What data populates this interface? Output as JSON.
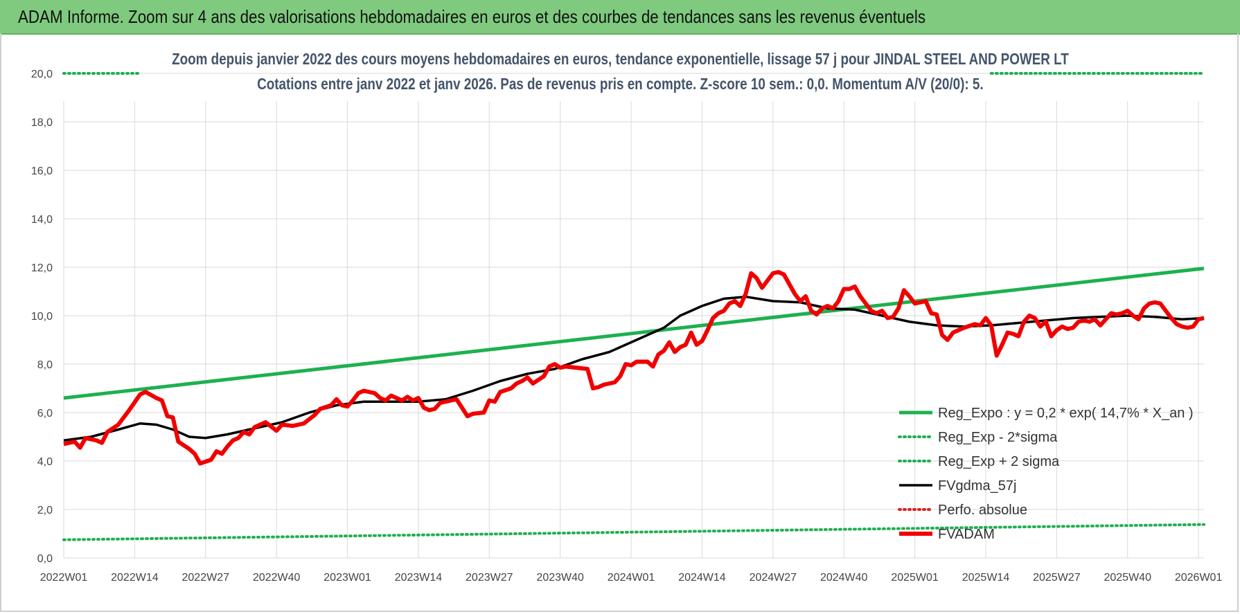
{
  "banner": {
    "title": "ADAM Informe. Zoom sur 4 ans des valorisations hebdomadaires en euros et des courbes de tendances sans les revenus éventuels"
  },
  "chart_data": {
    "type": "line",
    "title_line1": "Zoom depuis janvier 2022 des cours moyens hebdomadaires en euros, tendance exponentielle, lissage 57 j pour JINDAL STEEL AND POWER LT",
    "title_line2": "Cotations entre janv 2022 et janv 2026. Pas de revenus pris en compte. Z-score 10 sem.: 0,0. Momentum A/V (20/0): 5.",
    "xlabel": "",
    "ylabel": "",
    "ylim": [
      0,
      20
    ],
    "yticks": [
      "0,0",
      "2,0",
      "4,0",
      "6,0",
      "8,0",
      "10,0",
      "12,0",
      "14,0",
      "16,0",
      "18,0",
      "20,0"
    ],
    "x_ticks": [
      "2022W01",
      "2022W14",
      "2022W27",
      "2022W40",
      "2023W01",
      "2023W14",
      "2023W27",
      "2023W40",
      "2024W01",
      "2024W14",
      "2024W27",
      "2024W40",
      "2025W01",
      "2025W14",
      "2025W27",
      "2025W40",
      "2026W01"
    ],
    "x_range_weeks": [
      0,
      209
    ],
    "grid": true,
    "legend_position": "bottom-right",
    "series": [
      {
        "name": "Reg_Expo : y = 0,2 * exp( 14,7% *  X_an )",
        "color": "#1eb050",
        "style": "solid",
        "points": [
          [
            0,
            6.6
          ],
          [
            209,
            11.95
          ]
        ]
      },
      {
        "name": "Reg_Exp - 2*sigma",
        "color": "#1eb050",
        "style": "dotted",
        "points": [
          [
            0,
            0.75
          ],
          [
            209,
            1.38
          ]
        ]
      },
      {
        "name": "Reg_Exp + 2 sigma",
        "color": "#1eb050",
        "style": "dotted",
        "points": [
          [
            0,
            20.0
          ],
          [
            14,
            20.0
          ],
          [
            170,
            20.0
          ],
          [
            209,
            20.0
          ]
        ],
        "segments": [
          [
            0,
            14
          ],
          [
            170,
            209
          ]
        ]
      },
      {
        "name": "FVgdma_57j",
        "color": "#000000",
        "style": "solid",
        "points": [
          [
            0,
            4.85
          ],
          [
            5,
            5.0
          ],
          [
            10,
            5.3
          ],
          [
            14,
            5.55
          ],
          [
            17,
            5.5
          ],
          [
            20,
            5.3
          ],
          [
            23,
            5.0
          ],
          [
            26,
            4.95
          ],
          [
            30,
            5.1
          ],
          [
            35,
            5.35
          ],
          [
            40,
            5.6
          ],
          [
            45,
            6.0
          ],
          [
            50,
            6.3
          ],
          [
            55,
            6.45
          ],
          [
            60,
            6.45
          ],
          [
            65,
            6.45
          ],
          [
            70,
            6.55
          ],
          [
            75,
            6.9
          ],
          [
            80,
            7.3
          ],
          [
            85,
            7.6
          ],
          [
            90,
            7.8
          ],
          [
            95,
            8.2
          ],
          [
            100,
            8.5
          ],
          [
            105,
            9.0
          ],
          [
            110,
            9.5
          ],
          [
            113,
            10.0
          ],
          [
            117,
            10.4
          ],
          [
            121,
            10.7
          ],
          [
            125,
            10.78
          ],
          [
            130,
            10.6
          ],
          [
            135,
            10.55
          ],
          [
            140,
            10.3
          ],
          [
            145,
            10.25
          ],
          [
            150,
            10.0
          ],
          [
            155,
            9.75
          ],
          [
            160,
            9.6
          ],
          [
            165,
            9.55
          ],
          [
            170,
            9.6
          ],
          [
            175,
            9.7
          ],
          [
            180,
            9.8
          ],
          [
            185,
            9.9
          ],
          [
            190,
            9.95
          ],
          [
            195,
            10.0
          ],
          [
            200,
            9.95
          ],
          [
            205,
            9.85
          ],
          [
            209,
            9.9
          ]
        ]
      },
      {
        "name": "Perfo. absolue",
        "color": "#e02020",
        "style": "dotted",
        "points": []
      },
      {
        "name": "FVADAM",
        "color": "#f00000",
        "style": "solid-thick",
        "points": [
          [
            0,
            4.7
          ],
          [
            2,
            4.8
          ],
          [
            3,
            4.55
          ],
          [
            4,
            4.95
          ],
          [
            6,
            4.85
          ],
          [
            7,
            4.75
          ],
          [
            8,
            5.2
          ],
          [
            10,
            5.5
          ],
          [
            12,
            6.1
          ],
          [
            14,
            6.75
          ],
          [
            15,
            6.85
          ],
          [
            17,
            6.6
          ],
          [
            18,
            6.5
          ],
          [
            19,
            5.85
          ],
          [
            20,
            5.8
          ],
          [
            21,
            4.8
          ],
          [
            23,
            4.5
          ],
          [
            24,
            4.3
          ],
          [
            25,
            3.9
          ],
          [
            27,
            4.05
          ],
          [
            28,
            4.4
          ],
          [
            29,
            4.3
          ],
          [
            30,
            4.6
          ],
          [
            31,
            4.85
          ],
          [
            32,
            4.95
          ],
          [
            33,
            5.2
          ],
          [
            34,
            5.1
          ],
          [
            35,
            5.4
          ],
          [
            37,
            5.6
          ],
          [
            39,
            5.25
          ],
          [
            40,
            5.5
          ],
          [
            42,
            5.45
          ],
          [
            44,
            5.55
          ],
          [
            46,
            5.9
          ],
          [
            47,
            6.15
          ],
          [
            49,
            6.3
          ],
          [
            50,
            6.55
          ],
          [
            51,
            6.3
          ],
          [
            52,
            6.25
          ],
          [
            53,
            6.5
          ],
          [
            54,
            6.8
          ],
          [
            55,
            6.9
          ],
          [
            57,
            6.8
          ],
          [
            58,
            6.6
          ],
          [
            59,
            6.5
          ],
          [
            60,
            6.7
          ],
          [
            62,
            6.5
          ],
          [
            63,
            6.65
          ],
          [
            64,
            6.5
          ],
          [
            65,
            6.6
          ],
          [
            66,
            6.2
          ],
          [
            67,
            6.1
          ],
          [
            68,
            6.15
          ],
          [
            69,
            6.4
          ],
          [
            71,
            6.5
          ],
          [
            72,
            6.55
          ],
          [
            73,
            6.2
          ],
          [
            74,
            5.85
          ],
          [
            75,
            5.95
          ],
          [
            77,
            6.0
          ],
          [
            78,
            6.5
          ],
          [
            79,
            6.45
          ],
          [
            80,
            6.85
          ],
          [
            82,
            7.0
          ],
          [
            83,
            7.2
          ],
          [
            84,
            7.3
          ],
          [
            85,
            7.45
          ],
          [
            86,
            7.2
          ],
          [
            88,
            7.5
          ],
          [
            89,
            7.9
          ],
          [
            90,
            8.0
          ],
          [
            91,
            7.85
          ],
          [
            92,
            7.9
          ],
          [
            94,
            7.85
          ],
          [
            96,
            7.8
          ],
          [
            97,
            7.0
          ],
          [
            98,
            7.05
          ],
          [
            99,
            7.15
          ],
          [
            101,
            7.25
          ],
          [
            102,
            7.5
          ],
          [
            103,
            8.0
          ],
          [
            104,
            7.95
          ],
          [
            105,
            8.1
          ],
          [
            107,
            8.1
          ],
          [
            108,
            7.9
          ],
          [
            109,
            8.4
          ],
          [
            110,
            8.55
          ],
          [
            111,
            8.9
          ],
          [
            112,
            8.5
          ],
          [
            113,
            8.7
          ],
          [
            114,
            8.8
          ],
          [
            115,
            9.3
          ],
          [
            116,
            8.8
          ],
          [
            117,
            8.95
          ],
          [
            118,
            9.4
          ],
          [
            119,
            9.9
          ],
          [
            120,
            10.1
          ],
          [
            121,
            10.2
          ],
          [
            122,
            10.5
          ],
          [
            123,
            10.6
          ],
          [
            124,
            10.4
          ],
          [
            125,
            10.9
          ],
          [
            126,
            11.75
          ],
          [
            127,
            11.55
          ],
          [
            128,
            11.15
          ],
          [
            129,
            11.45
          ],
          [
            130,
            11.75
          ],
          [
            131,
            11.8
          ],
          [
            132,
            11.7
          ],
          [
            133,
            11.3
          ],
          [
            134,
            10.9
          ],
          [
            135,
            10.6
          ],
          [
            136,
            10.8
          ],
          [
            137,
            10.2
          ],
          [
            138,
            10.05
          ],
          [
            139,
            10.3
          ],
          [
            140,
            10.4
          ],
          [
            141,
            10.3
          ],
          [
            142,
            10.6
          ],
          [
            143,
            11.1
          ],
          [
            144,
            11.1
          ],
          [
            145,
            11.2
          ],
          [
            146,
            10.8
          ],
          [
            147,
            10.5
          ],
          [
            148,
            10.2
          ],
          [
            149,
            10.1
          ],
          [
            150,
            10.2
          ],
          [
            151,
            9.9
          ],
          [
            152,
            9.95
          ],
          [
            153,
            10.3
          ],
          [
            154,
            11.05
          ],
          [
            155,
            10.8
          ],
          [
            156,
            10.5
          ],
          [
            157,
            10.55
          ],
          [
            158,
            10.6
          ],
          [
            159,
            10.1
          ],
          [
            160,
            10.05
          ],
          [
            161,
            9.2
          ],
          [
            162,
            9.0
          ],
          [
            163,
            9.3
          ],
          [
            165,
            9.5
          ],
          [
            167,
            9.65
          ],
          [
            168,
            9.6
          ],
          [
            169,
            9.9
          ],
          [
            170,
            9.6
          ],
          [
            171,
            8.35
          ],
          [
            172,
            8.8
          ],
          [
            173,
            9.3
          ],
          [
            174,
            9.25
          ],
          [
            175,
            9.15
          ],
          [
            176,
            9.75
          ],
          [
            177,
            10.0
          ],
          [
            178,
            9.9
          ],
          [
            179,
            9.55
          ],
          [
            180,
            9.75
          ],
          [
            181,
            9.15
          ],
          [
            182,
            9.4
          ],
          [
            183,
            9.55
          ],
          [
            184,
            9.45
          ],
          [
            185,
            9.5
          ],
          [
            186,
            9.75
          ],
          [
            187,
            9.8
          ],
          [
            188,
            9.75
          ],
          [
            189,
            9.85
          ],
          [
            190,
            9.6
          ],
          [
            191,
            9.85
          ],
          [
            192,
            10.1
          ],
          [
            193,
            10.05
          ],
          [
            194,
            10.1
          ],
          [
            195,
            10.2
          ],
          [
            196,
            10.0
          ],
          [
            197,
            9.85
          ],
          [
            198,
            10.3
          ],
          [
            199,
            10.5
          ],
          [
            200,
            10.55
          ],
          [
            201,
            10.5
          ],
          [
            202,
            10.2
          ],
          [
            203,
            9.9
          ],
          [
            204,
            9.65
          ],
          [
            205,
            9.55
          ],
          [
            206,
            9.5
          ],
          [
            207,
            9.55
          ],
          [
            208,
            9.85
          ],
          [
            209,
            9.9
          ]
        ]
      }
    ]
  }
}
